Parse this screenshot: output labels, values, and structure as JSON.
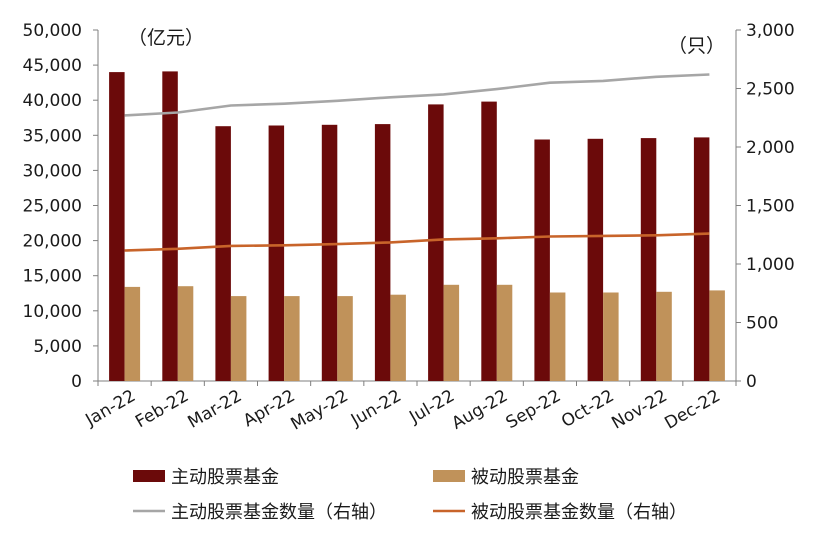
{
  "chart_data": {
    "type": "bar",
    "categories": [
      "Jan-22",
      "Feb-22",
      "Mar-22",
      "Apr-22",
      "May-22",
      "Jun-22",
      "Jul-22",
      "Aug-22",
      "Sep-22",
      "Oct-22",
      "Nov-22",
      "Dec-22"
    ],
    "left_unit": "（亿元）",
    "right_unit": "（只）",
    "ylim_left": [
      0,
      50000
    ],
    "ylim_right": [
      0,
      3000
    ],
    "left_ticks": [
      "0",
      "5,000",
      "10,000",
      "15,000",
      "20,000",
      "25,000",
      "30,000",
      "35,000",
      "40,000",
      "45,000",
      "50,000"
    ],
    "right_ticks": [
      "0",
      "500",
      "1,000",
      "1,500",
      "2,000",
      "2,500",
      "3,000"
    ],
    "grid": false,
    "legend_position": "bottom",
    "series": [
      {
        "name": "主动股票基金",
        "type": "bar",
        "axis": "left",
        "color": "#6b0a0a",
        "values": [
          44000,
          44100,
          36300,
          36400,
          36500,
          36600,
          39400,
          39800,
          34400,
          34500,
          34600,
          34700
        ]
      },
      {
        "name": "被动股票基金",
        "type": "bar",
        "axis": "left",
        "color": "#c0925a",
        "values": [
          13400,
          13500,
          12100,
          12100,
          12100,
          12300,
          13700,
          13700,
          12600,
          12600,
          12700,
          12900
        ]
      },
      {
        "name": "主动股票基金数量（右轴）",
        "type": "line",
        "axis": "right",
        "color": "#a6a6a6",
        "values": [
          2270,
          2295,
          2355,
          2370,
          2395,
          2425,
          2450,
          2495,
          2550,
          2565,
          2600,
          2620
        ]
      },
      {
        "name": "被动股票基金数量（右轴）",
        "type": "line",
        "axis": "right",
        "color": "#c8642a",
        "values": [
          1115,
          1130,
          1155,
          1160,
          1170,
          1185,
          1210,
          1220,
          1235,
          1240,
          1245,
          1260
        ]
      }
    ]
  }
}
